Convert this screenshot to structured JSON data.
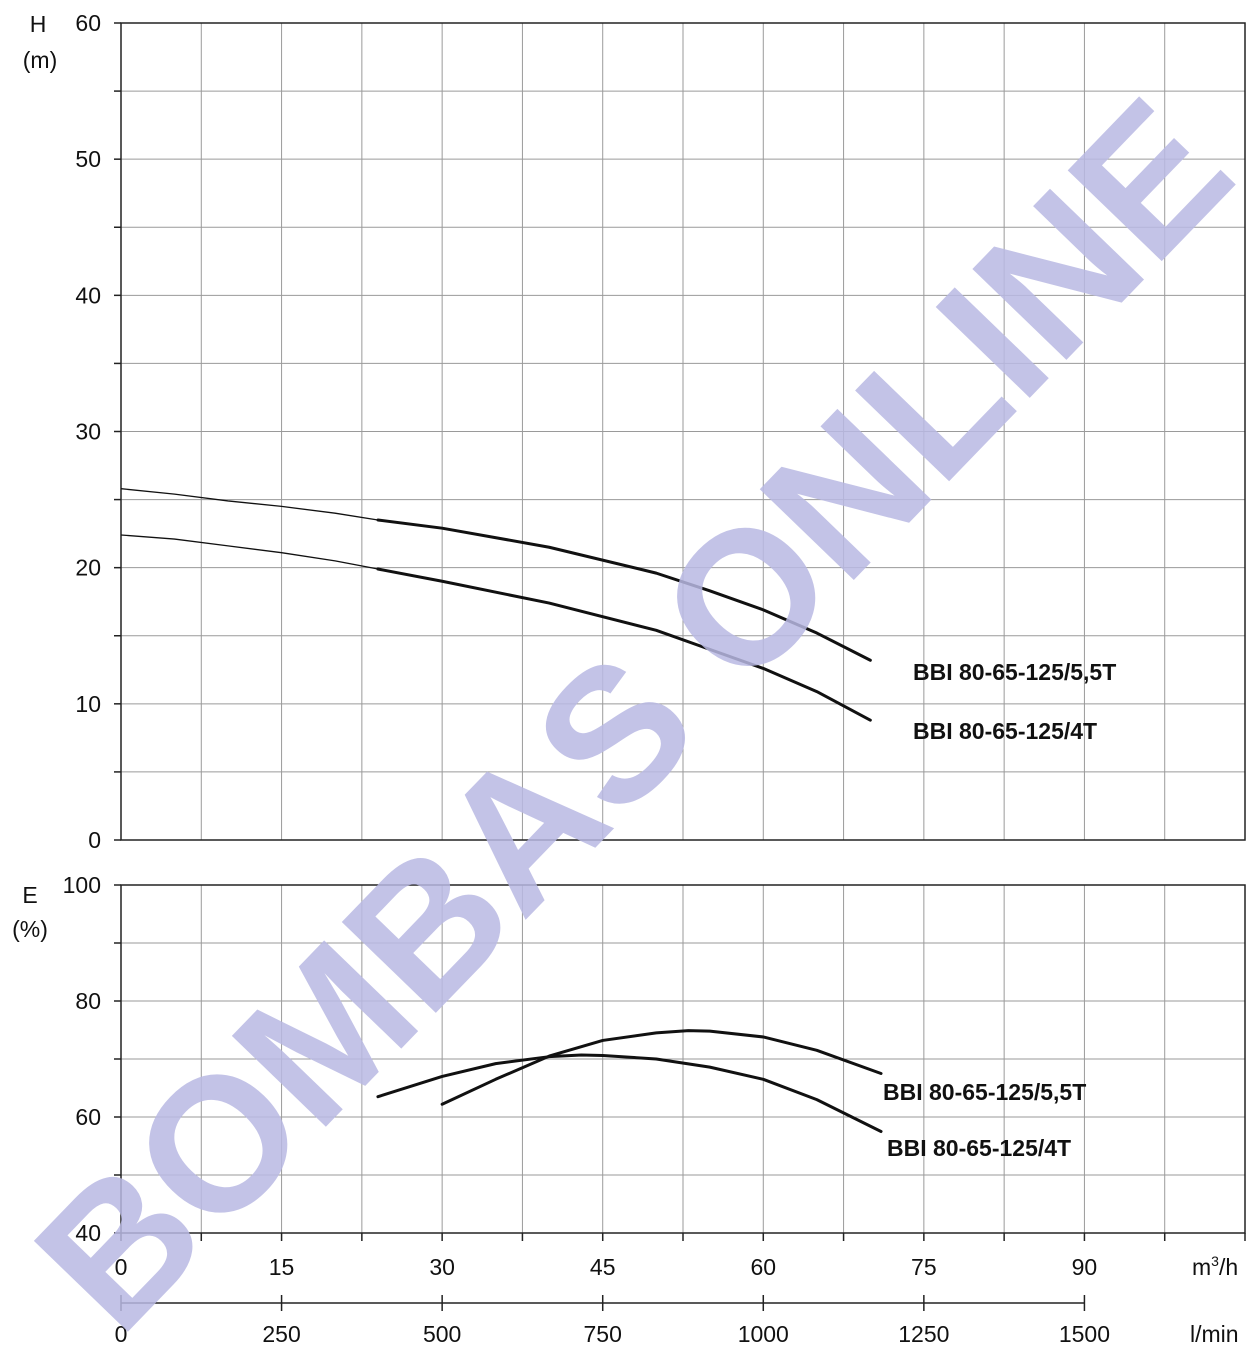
{
  "watermark": "BOMBAS ONLINE",
  "colors": {
    "grid": "#9a9a9a",
    "curve": "#111111",
    "watermark": "#b9b9e3"
  },
  "chart_data": [
    {
      "type": "line",
      "panel": "head",
      "ylabel_top": "H",
      "ylabel_unit": "(m)",
      "ylim": [
        0,
        60
      ],
      "yticks": [
        0,
        10,
        20,
        30,
        40,
        50,
        60
      ],
      "xlim": [
        0,
        105
      ],
      "grid": true,
      "series": [
        {
          "name": "BBI 80-65-125/5,5T",
          "x_thin": [
            0,
            5,
            10,
            15,
            20,
            24
          ],
          "y_thin": [
            25.8,
            25.4,
            24.9,
            24.5,
            24.0,
            23.5
          ],
          "x": [
            24,
            30,
            40,
            50,
            55,
            60,
            65,
            70
          ],
          "y": [
            23.5,
            22.9,
            21.5,
            19.6,
            18.3,
            16.9,
            15.2,
            13.2
          ]
        },
        {
          "name": "BBI 80-65-125/4T",
          "x_thin": [
            0,
            5,
            10,
            15,
            20,
            24
          ],
          "y_thin": [
            22.4,
            22.1,
            21.6,
            21.1,
            20.5,
            19.9
          ],
          "x": [
            24,
            30,
            40,
            50,
            55,
            60,
            65,
            70
          ],
          "y": [
            19.9,
            19.0,
            17.4,
            15.4,
            14.0,
            12.6,
            10.9,
            8.8
          ]
        }
      ]
    },
    {
      "type": "line",
      "panel": "efficiency",
      "ylabel_top": "E",
      "ylabel_unit": "(%)",
      "ylim": [
        40,
        100
      ],
      "yticks": [
        40,
        60,
        80,
        100
      ],
      "xlim": [
        0,
        105
      ],
      "grid": true,
      "series": [
        {
          "name": "BBI 80-65-125/5,5T",
          "x": [
            30,
            35,
            40,
            45,
            50,
            53,
            55,
            60,
            65,
            71
          ],
          "y": [
            62.2,
            66.5,
            70.5,
            73.2,
            74.5,
            74.9,
            74.8,
            73.8,
            71.5,
            67.5
          ]
        },
        {
          "name": "BBI 80-65-125/4T",
          "x": [
            24,
            30,
            35,
            40,
            43,
            45,
            50,
            55,
            60,
            65,
            71
          ],
          "y": [
            63.5,
            67.0,
            69.2,
            70.4,
            70.7,
            70.6,
            70.0,
            68.6,
            66.5,
            63.0,
            57.5
          ]
        }
      ]
    }
  ],
  "x_axis_primary": {
    "unit_base": "m",
    "unit_exp": "3",
    "unit_tail": "/h",
    "ticks": [
      0,
      15,
      30,
      45,
      60,
      75,
      90
    ]
  },
  "x_axis_secondary": {
    "unit": "l/min",
    "ticks": [
      0,
      250,
      500,
      750,
      1000,
      1250,
      1500
    ]
  }
}
